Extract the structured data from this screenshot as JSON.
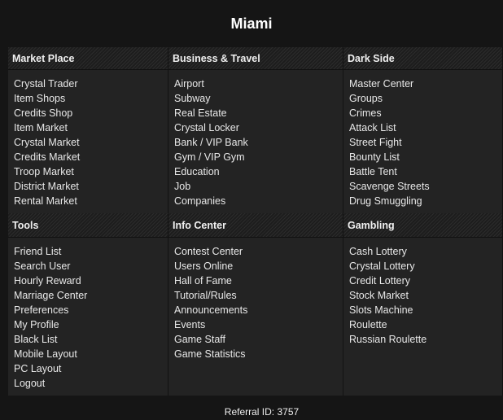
{
  "title": "Miami",
  "sections": [
    {
      "header": "Market Place",
      "items": [
        "Crystal Trader",
        "Item Shops",
        "Credits Shop",
        "Item Market",
        "Crystal Market",
        "Credits Market",
        "Troop Market",
        "District Market",
        "Rental Market"
      ]
    },
    {
      "header": "Business & Travel",
      "items": [
        "Airport",
        "Subway",
        "Real Estate",
        "Crystal Locker",
        "Bank / VIP Bank",
        "Gym / VIP Gym",
        "Education",
        "Job",
        "Companies"
      ]
    },
    {
      "header": "Dark Side",
      "items": [
        "Master Center",
        "Groups",
        "Crimes",
        "Attack List",
        "Street Fight",
        "Bounty List",
        "Battle Tent",
        "Scavenge Streets",
        "Drug Smuggling"
      ]
    },
    {
      "header": "Tools",
      "items": [
        "Friend List",
        "Search User",
        "Hourly Reward",
        "Marriage Center",
        "Preferences",
        "My Profile",
        "Black List",
        "Mobile Layout",
        "PC Layout",
        "Logout"
      ]
    },
    {
      "header": "Info Center",
      "items": [
        "Contest Center",
        "Users Online",
        "Hall of Fame",
        "Tutorial/Rules",
        "Announcements",
        "Events",
        "Game Staff",
        "Game Statistics"
      ]
    },
    {
      "header": "Gambling",
      "items": [
        "Cash Lottery",
        "Crystal Lottery",
        "Credit Lottery",
        "Stock Market",
        "Slots Machine",
        "Roulette",
        "Russian Roulette"
      ]
    }
  ],
  "referral": "Referral ID: 3757"
}
